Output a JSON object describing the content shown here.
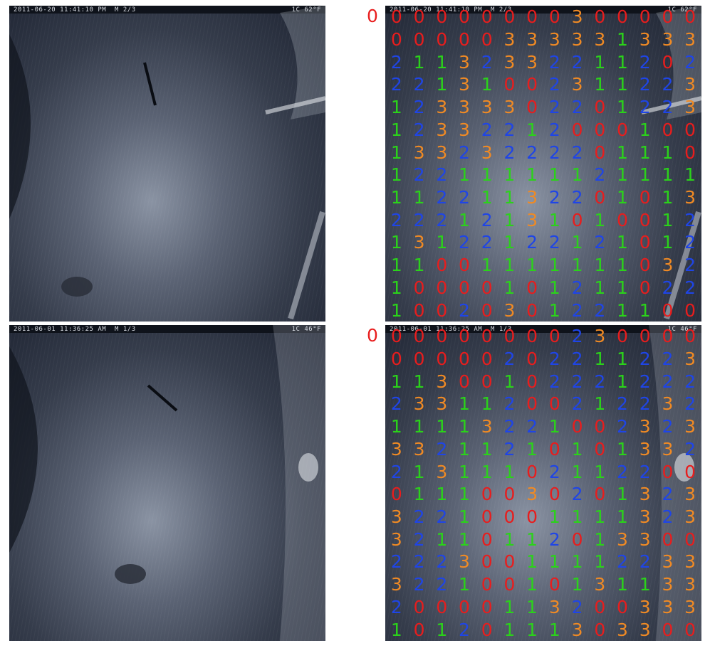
{
  "colors": {
    "0": "#e81d1d",
    "1": "#2bd21a",
    "2": "#1f45e6",
    "3": "#f08a24"
  },
  "rows": [
    {
      "photo_stamp": "2011-06-20 11:41:10 PM  M 2/3",
      "photo_temp": "1C 62°F",
      "corner_label": "0",
      "grid": [
        [
          0,
          0,
          0,
          0,
          0,
          0,
          0,
          0,
          3,
          0,
          0,
          0,
          0,
          0
        ],
        [
          0,
          0,
          0,
          0,
          0,
          3,
          3,
          3,
          3,
          3,
          1,
          3,
          3,
          3
        ],
        [
          2,
          1,
          1,
          3,
          2,
          3,
          3,
          2,
          2,
          1,
          1,
          2,
          0,
          2
        ],
        [
          2,
          2,
          1,
          3,
          1,
          0,
          0,
          2,
          3,
          1,
          1,
          2,
          2,
          3
        ],
        [
          1,
          2,
          3,
          3,
          3,
          3,
          0,
          2,
          2,
          0,
          1,
          2,
          2,
          3
        ],
        [
          1,
          2,
          3,
          3,
          2,
          2,
          1,
          2,
          0,
          0,
          0,
          1,
          0,
          0
        ],
        [
          1,
          3,
          3,
          2,
          3,
          2,
          2,
          2,
          2,
          0,
          1,
          1,
          1,
          0
        ],
        [
          1,
          2,
          2,
          1,
          1,
          1,
          1,
          1,
          1,
          2,
          1,
          1,
          1,
          1
        ],
        [
          1,
          1,
          2,
          2,
          1,
          1,
          3,
          2,
          2,
          0,
          1,
          0,
          1,
          3
        ],
        [
          2,
          2,
          2,
          1,
          2,
          1,
          3,
          1,
          0,
          1,
          0,
          0,
          1,
          2
        ],
        [
          1,
          3,
          1,
          2,
          2,
          1,
          2,
          2,
          1,
          2,
          1,
          0,
          1,
          2
        ],
        [
          1,
          1,
          0,
          0,
          1,
          1,
          1,
          1,
          1,
          1,
          1,
          0,
          3,
          2
        ],
        [
          1,
          0,
          0,
          0,
          0,
          1,
          0,
          1,
          2,
          1,
          1,
          0,
          2,
          2
        ],
        [
          1,
          0,
          0,
          2,
          0,
          3,
          0,
          1,
          2,
          2,
          1,
          1,
          0,
          0
        ]
      ]
    },
    {
      "photo_stamp": "2011-06-01 11:36:25 AM  M 1/3",
      "photo_temp": "1C 46°F",
      "corner_label": "0",
      "grid": [
        [
          0,
          0,
          0,
          0,
          0,
          0,
          0,
          0,
          2,
          3,
          0,
          0,
          0,
          0
        ],
        [
          0,
          0,
          0,
          0,
          0,
          2,
          0,
          2,
          2,
          1,
          1,
          2,
          2,
          3
        ],
        [
          1,
          1,
          3,
          0,
          0,
          1,
          0,
          2,
          2,
          2,
          1,
          2,
          2,
          2
        ],
        [
          2,
          3,
          3,
          1,
          1,
          2,
          0,
          0,
          2,
          1,
          2,
          2,
          3,
          2
        ],
        [
          1,
          1,
          1,
          1,
          3,
          2,
          2,
          1,
          0,
          0,
          2,
          3,
          2,
          3
        ],
        [
          3,
          3,
          2,
          1,
          1,
          2,
          1,
          0,
          1,
          0,
          1,
          3,
          3,
          2
        ],
        [
          2,
          1,
          3,
          1,
          1,
          1,
          0,
          2,
          1,
          1,
          2,
          2,
          0,
          0
        ],
        [
          0,
          1,
          1,
          1,
          0,
          0,
          3,
          0,
          2,
          0,
          1,
          3,
          2,
          3
        ],
        [
          3,
          2,
          2,
          1,
          0,
          0,
          0,
          1,
          1,
          1,
          1,
          3,
          2,
          3
        ],
        [
          3,
          2,
          1,
          1,
          0,
          1,
          1,
          2,
          0,
          1,
          3,
          3,
          0,
          0
        ],
        [
          2,
          2,
          2,
          3,
          0,
          0,
          1,
          1,
          1,
          1,
          2,
          2,
          3,
          3
        ],
        [
          3,
          2,
          2,
          1,
          0,
          0,
          1,
          0,
          1,
          3,
          1,
          1,
          3,
          3
        ],
        [
          2,
          0,
          0,
          0,
          0,
          1,
          1,
          3,
          2,
          0,
          0,
          3,
          3,
          3
        ],
        [
          1,
          0,
          1,
          2,
          0,
          1,
          1,
          1,
          3,
          0,
          3,
          3,
          0,
          0
        ]
      ]
    }
  ]
}
